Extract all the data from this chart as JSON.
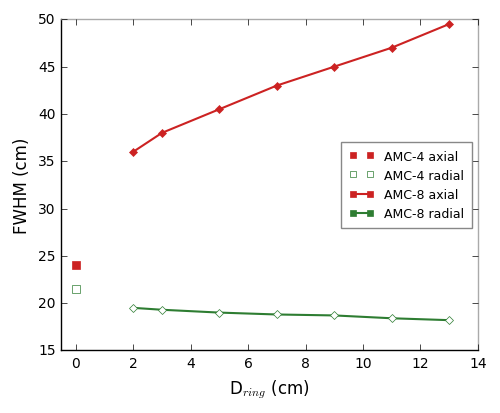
{
  "amc4_axial_x": [
    0
  ],
  "amc4_axial_y": [
    24.0
  ],
  "amc4_radial_x": [
    0
  ],
  "amc4_radial_y": [
    21.5
  ],
  "amc8_axial_x": [
    2,
    3,
    5,
    7,
    9,
    11,
    13
  ],
  "amc8_axial_y": [
    36.0,
    38.0,
    40.5,
    43.0,
    45.0,
    47.0,
    49.5
  ],
  "amc8_radial_x": [
    2,
    3,
    5,
    7,
    9,
    11,
    13
  ],
  "amc8_radial_y": [
    19.5,
    19.3,
    19.0,
    18.8,
    18.7,
    18.4,
    18.2
  ],
  "color_red": "#cc2222",
  "color_green": "#2e7d32",
  "xlabel": "D$_{ring}$ (cm)",
  "ylabel": "FWHM (cm)",
  "xlim": [
    -0.5,
    14
  ],
  "ylim": [
    15,
    50
  ],
  "xticks": [
    0,
    2,
    4,
    6,
    8,
    10,
    12,
    14
  ],
  "yticks": [
    15,
    20,
    25,
    30,
    35,
    40,
    45,
    50
  ],
  "legend_labels": [
    "AMC-4 axial",
    "AMC-4 radial",
    "AMC-8 axial",
    "AMC-8 radial"
  ]
}
